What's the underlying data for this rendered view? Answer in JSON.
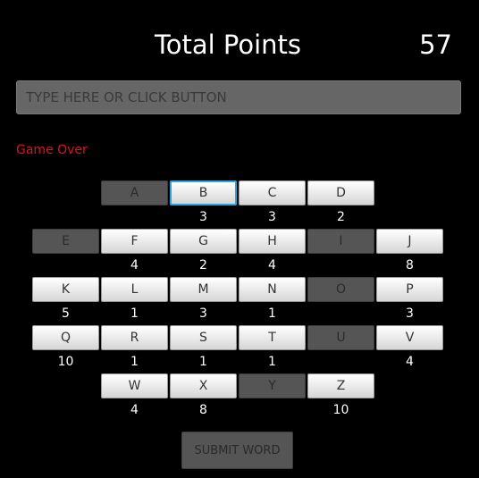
{
  "header": {
    "title": "Total Points",
    "score": "57"
  },
  "input": {
    "placeholder": "TYPE HERE OR CLICK BUTTON",
    "value": ""
  },
  "status": "Game Over",
  "keys": [
    {
      "letter": "A",
      "points": "",
      "state": "used"
    },
    {
      "letter": "B",
      "points": "3",
      "state": "focused"
    },
    {
      "letter": "C",
      "points": "3",
      "state": "available"
    },
    {
      "letter": "D",
      "points": "2",
      "state": "available"
    },
    {
      "letter": "E",
      "points": "",
      "state": "used"
    },
    {
      "letter": "F",
      "points": "4",
      "state": "available"
    },
    {
      "letter": "G",
      "points": "2",
      "state": "available"
    },
    {
      "letter": "H",
      "points": "4",
      "state": "available"
    },
    {
      "letter": "I",
      "points": "",
      "state": "used"
    },
    {
      "letter": "J",
      "points": "8",
      "state": "available"
    },
    {
      "letter": "K",
      "points": "5",
      "state": "available"
    },
    {
      "letter": "L",
      "points": "1",
      "state": "available"
    },
    {
      "letter": "M",
      "points": "3",
      "state": "available"
    },
    {
      "letter": "N",
      "points": "1",
      "state": "available"
    },
    {
      "letter": "O",
      "points": "",
      "state": "used"
    },
    {
      "letter": "P",
      "points": "3",
      "state": "available"
    },
    {
      "letter": "Q",
      "points": "10",
      "state": "available"
    },
    {
      "letter": "R",
      "points": "1",
      "state": "available"
    },
    {
      "letter": "S",
      "points": "1",
      "state": "available"
    },
    {
      "letter": "T",
      "points": "1",
      "state": "available"
    },
    {
      "letter": "U",
      "points": "",
      "state": "used"
    },
    {
      "letter": "V",
      "points": "4",
      "state": "available"
    },
    {
      "letter": "W",
      "points": "4",
      "state": "available"
    },
    {
      "letter": "X",
      "points": "8",
      "state": "available"
    },
    {
      "letter": "Y",
      "points": "",
      "state": "used"
    },
    {
      "letter": "Z",
      "points": "10",
      "state": "available"
    }
  ],
  "submit": {
    "label": "SUBMIT WORD",
    "state": "disabled"
  }
}
